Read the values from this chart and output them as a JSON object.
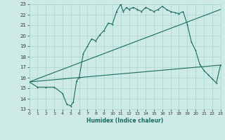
{
  "xlabel": "Humidex (Indice chaleur)",
  "xlim": [
    0,
    23
  ],
  "ylim": [
    13,
    23
  ],
  "xticks": [
    0,
    1,
    2,
    3,
    4,
    5,
    6,
    7,
    8,
    9,
    10,
    11,
    12,
    13,
    14,
    15,
    16,
    17,
    18,
    19,
    20,
    21,
    22,
    23
  ],
  "yticks": [
    13,
    14,
    15,
    16,
    17,
    18,
    19,
    20,
    21,
    22,
    23
  ],
  "bg_color": "#ceeae6",
  "grid_color": "#a8d5cf",
  "line_color": "#1a6b5e",
  "line1_x": [
    0,
    1,
    2,
    3,
    4,
    4.5,
    5,
    5.3,
    5.7,
    6,
    6.5,
    7,
    7.5,
    8,
    8.5,
    9,
    9.5,
    10,
    10.5,
    11,
    11.3,
    11.7,
    12,
    12.5,
    13,
    13.5,
    14,
    14.5,
    15,
    15.5,
    16,
    16.5,
    17,
    17.5,
    18,
    18.5,
    19,
    19.5,
    20,
    20.5,
    21,
    21.5,
    22,
    22.5,
    23
  ],
  "line1_y": [
    15.6,
    15.1,
    15.1,
    15.1,
    14.5,
    13.5,
    13.3,
    13.7,
    15.7,
    16.0,
    18.3,
    19.0,
    19.7,
    19.5,
    20.1,
    20.5,
    21.2,
    21.1,
    22.3,
    23.0,
    22.3,
    22.7,
    22.5,
    22.7,
    22.5,
    22.3,
    22.7,
    22.5,
    22.3,
    22.5,
    22.8,
    22.5,
    22.3,
    22.2,
    22.1,
    22.3,
    21.1,
    19.4,
    18.6,
    17.3,
    16.7,
    16.3,
    15.9,
    15.5,
    17.2
  ],
  "line2_x": [
    0,
    23
  ],
  "line2_y": [
    15.6,
    22.5
  ],
  "line3_x": [
    0,
    23
  ],
  "line3_y": [
    15.6,
    17.2
  ],
  "marker": "+"
}
